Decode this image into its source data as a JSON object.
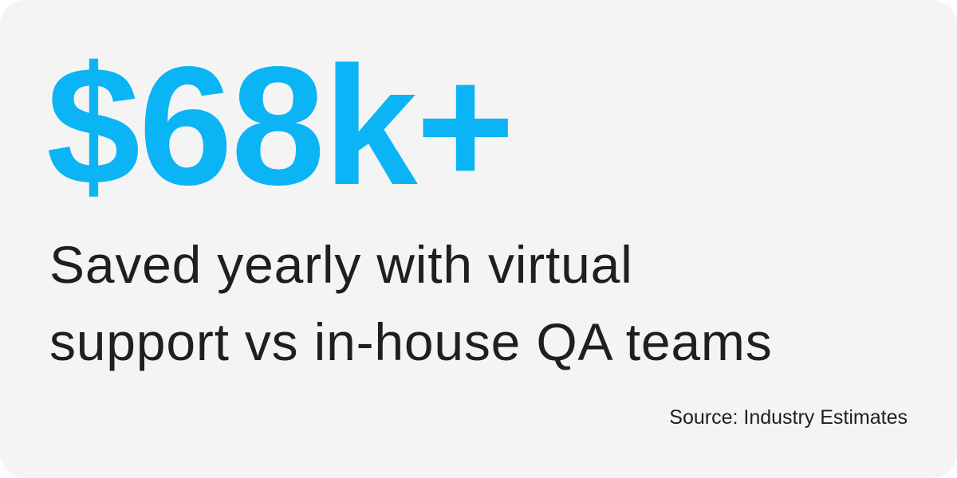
{
  "stat": {
    "value": "$68k+",
    "color": "#0bb4f5"
  },
  "description": {
    "line1": "Saved yearly with virtual",
    "line2": "support vs in-house QA teams"
  },
  "source": "Source: Industry Estimates"
}
